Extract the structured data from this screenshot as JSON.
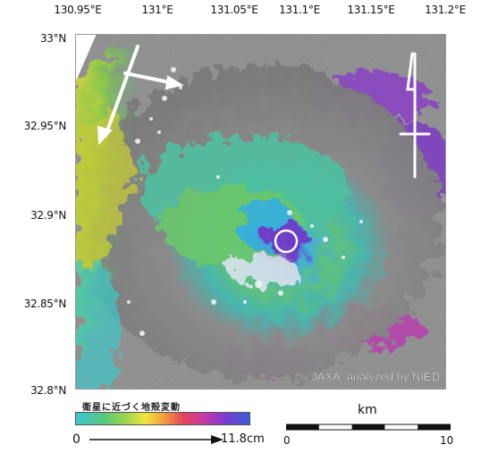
{
  "map": {
    "lon_labels": [
      "130.95°E",
      "131°E",
      "131.05°E",
      "131.1°E",
      "131.15°E",
      "131.2°E"
    ],
    "lat_labels": [
      "33°N",
      "32.95°N",
      "32.9°N",
      "32.85°N",
      "32.8°N"
    ],
    "credit": "©JAXA, analyzed by NIED",
    "north_symbol_icon": "north-arrow-icon",
    "satellite_direction_icon": "satellite-flight-direction-icon",
    "epicenter_marker_icon": "circle-marker-icon"
  },
  "legend": {
    "caption": "衛星に近づく地殻変動",
    "min_label": "0",
    "max_label": "11.8cm",
    "colors": [
      "#3ec6d7",
      "#58c879",
      "#a7d64a",
      "#f1e53c",
      "#f2a23b",
      "#e2435c",
      "#c53aa8",
      "#7c3ad2",
      "#3a5fd6"
    ]
  },
  "scale": {
    "unit": "km",
    "start": "0",
    "end": "10"
  }
}
